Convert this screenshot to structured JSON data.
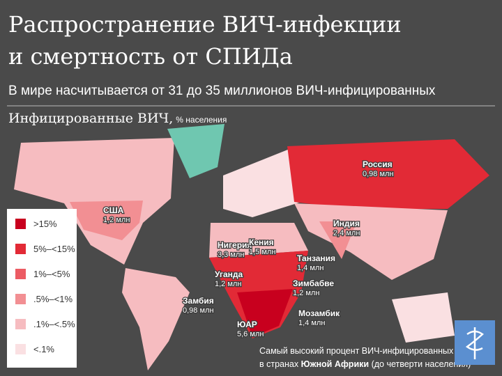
{
  "header": {
    "title": [
      "Распространение ВИЧ-инфекции",
      "и смертность от СПИДа"
    ],
    "subtitle": "В мире насчитывается от 31 до 35 миллионов ВИЧ-инфицированных"
  },
  "map": {
    "label": "Инфицированные ВИЧ,",
    "unit": "% населения",
    "legend": [
      {
        "label": ">15%",
        "color": "#c8001e"
      },
      {
        "label": "5%–<15%",
        "color": "#e22a36"
      },
      {
        "label": "1%–<5%",
        "color": "#ec5b63"
      },
      {
        "label": ".5%–<1%",
        "color": "#f28f93"
      },
      {
        "label": ".1%–<.5%",
        "color": "#f6bcc0"
      },
      {
        "label": "<.1%",
        "color": "#fae0e2"
      }
    ],
    "countries": [
      {
        "name": "Россия",
        "value": "0,98 млн"
      },
      {
        "name": "США",
        "value": "1,2 млн"
      },
      {
        "name": "Индия",
        "value": "2,4 млн"
      },
      {
        "name": "Нигерия",
        "value": "3,3 млн"
      },
      {
        "name": "Кения",
        "value": "1,5 млн"
      },
      {
        "name": "Танзания",
        "value": "1,4 млн"
      },
      {
        "name": "Уганда",
        "value": "1,2 млн"
      },
      {
        "name": "Зимбабве",
        "value": "1,2 млн"
      },
      {
        "name": "Замбия",
        "value": "0,98 млн"
      },
      {
        "name": "Мозамбик",
        "value": "1,4 млн"
      },
      {
        "name": "ЮАР",
        "value": "5,6 млн"
      }
    ],
    "note": {
      "line1": "Самый высокий процент ВИЧ-инфицированных",
      "prefix": "в странах",
      "emphasis": "Южной Африки",
      "suffix": "(до четверти населения)"
    }
  }
}
